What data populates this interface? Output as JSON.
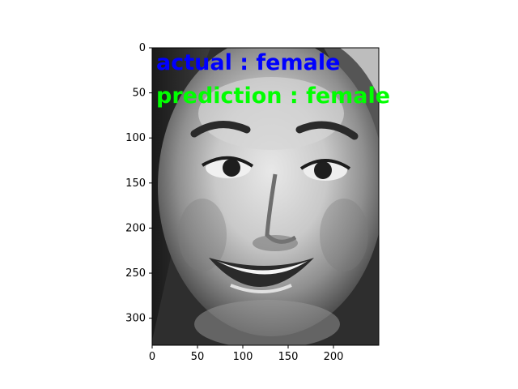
{
  "image": {
    "description": "",
    "x_ticks": [
      "0",
      "50",
      "100",
      "150",
      "200"
    ],
    "y_ticks": [
      "0",
      "50",
      "100",
      "150",
      "200",
      "250",
      "300"
    ],
    "x_range": [
      0,
      250
    ],
    "y_range": [
      0,
      330
    ]
  },
  "annotations": {
    "actual_text": "actual : female",
    "actual_color": "#0000ff",
    "prediction_text": "prediction : female",
    "prediction_color": "#00ff00"
  }
}
